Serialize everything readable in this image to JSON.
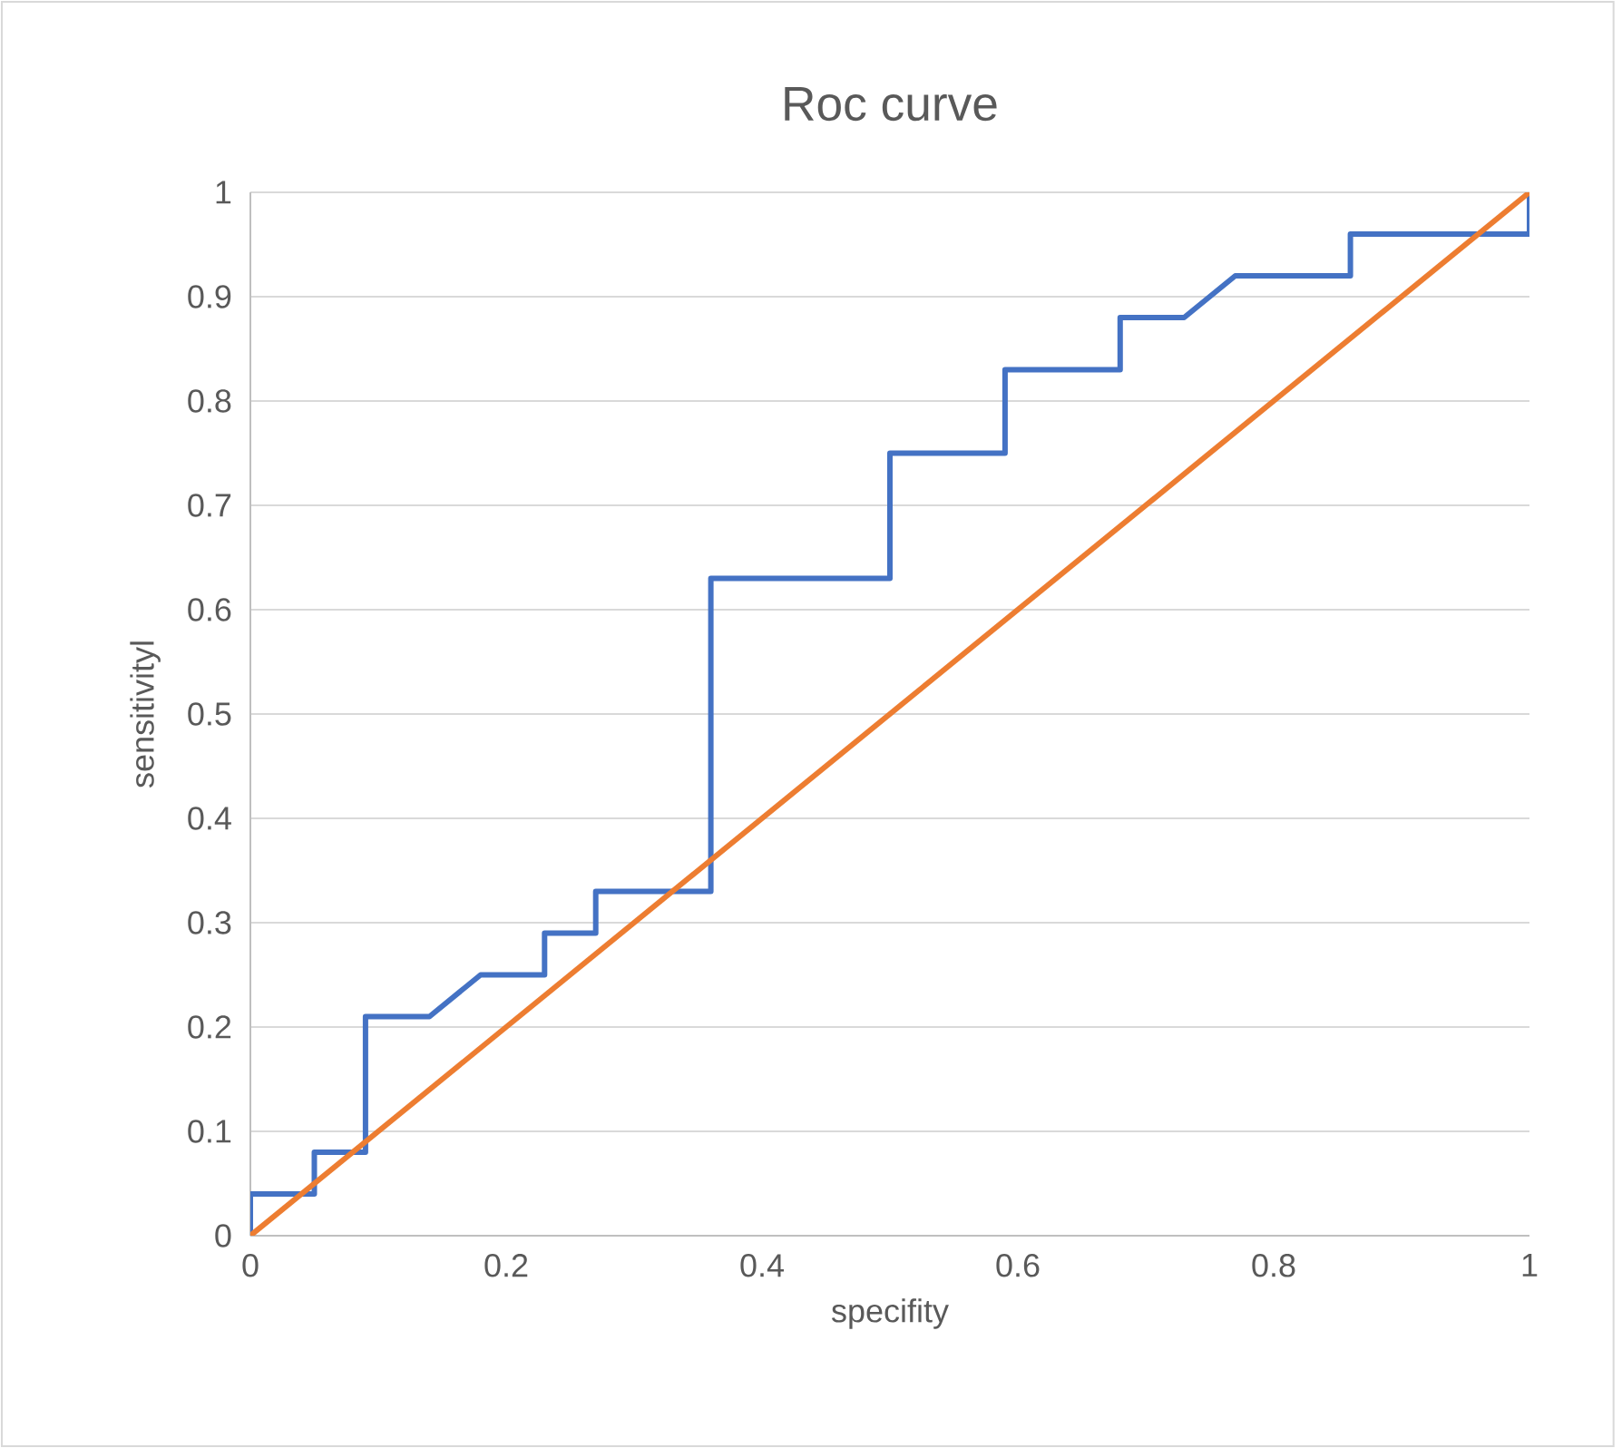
{
  "chart_data": {
    "type": "line",
    "title": "Roc curve",
    "xlabel": "specifity",
    "ylabel": "sensitivityl",
    "xlim": [
      0,
      1
    ],
    "ylim": [
      0,
      1
    ],
    "xticks": [
      0,
      0.2,
      0.4,
      0.6,
      0.8,
      1
    ],
    "yticks": [
      0,
      0.1,
      0.2,
      0.3,
      0.4,
      0.5,
      0.6,
      0.7,
      0.8,
      0.9,
      1
    ],
    "grid": "y",
    "marker": "none",
    "line_style": "solid",
    "series": [
      {
        "color": "#4472c4",
        "x": [
          0,
          0,
          0.05,
          0.05,
          0.09,
          0.09,
          0.14,
          0.18,
          0.23,
          0.23,
          0.27,
          0.27,
          0.36,
          0.36,
          0.5,
          0.5,
          0.59,
          0.59,
          0.68,
          0.68,
          0.73,
          0.77,
          0.86,
          0.86,
          1,
          1
        ],
        "values": [
          0,
          0.04,
          0.04,
          0.08,
          0.08,
          0.21,
          0.21,
          0.25,
          0.25,
          0.29,
          0.29,
          0.33,
          0.33,
          0.63,
          0.63,
          0.75,
          0.75,
          0.83,
          0.83,
          0.88,
          0.88,
          0.92,
          0.92,
          0.96,
          0.96,
          1
        ]
      },
      {
        "color": "#ed7d31",
        "x": [
          0,
          1
        ],
        "values": [
          0,
          1
        ]
      }
    ]
  }
}
